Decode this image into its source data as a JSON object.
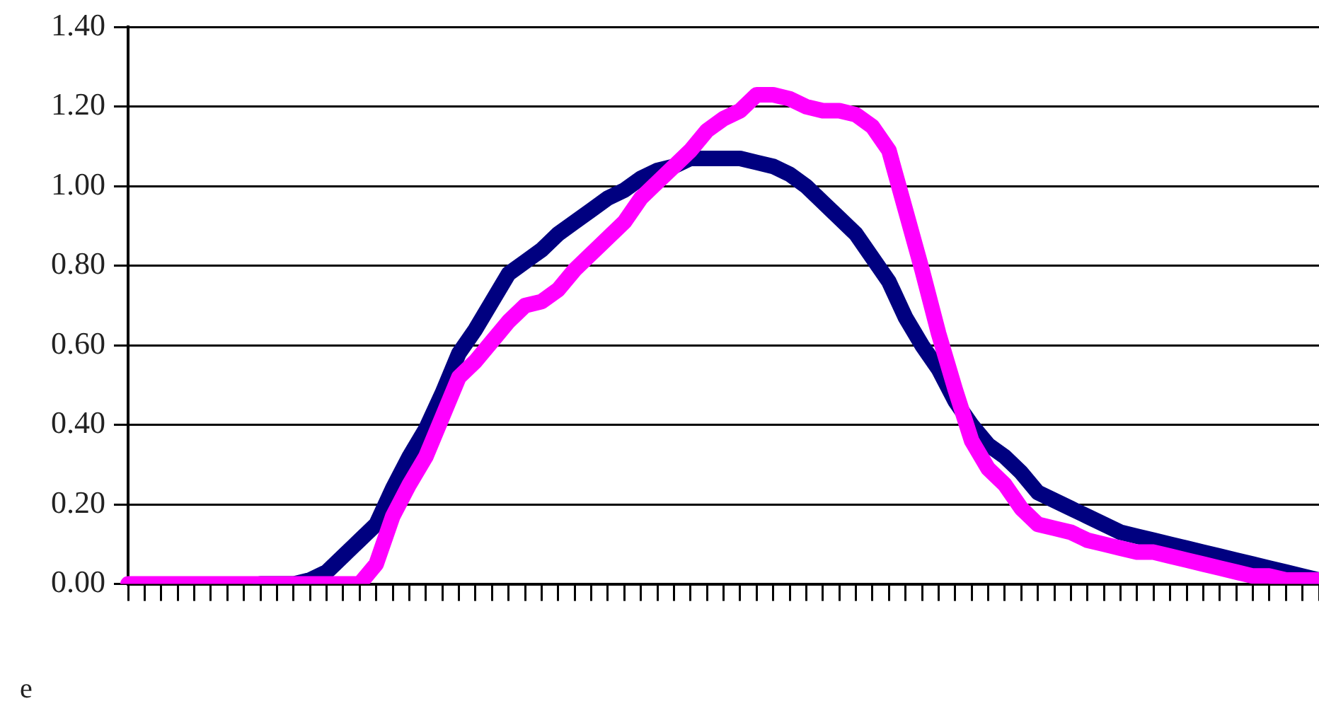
{
  "chart_data": {
    "type": "line",
    "categories": [
      null,
      null,
      null,
      null,
      null,
      null,
      null,
      null,
      null,
      null,
      null,
      null,
      null,
      null,
      null,
      null,
      null,
      null,
      null,
      null,
      null,
      null,
      null,
      null,
      null,
      null,
      null,
      null,
      null,
      null,
      null,
      null,
      null,
      null,
      null,
      null,
      null,
      null,
      null,
      null,
      null,
      null,
      null,
      null,
      null,
      null,
      null,
      null,
      null,
      null,
      null,
      null,
      null,
      null,
      null,
      null,
      null,
      null,
      null,
      null,
      null,
      null,
      null,
      null,
      null,
      null,
      null,
      null,
      null,
      null,
      null,
      null,
      null
    ],
    "series": [
      {
        "color": "#000080",
        "values": [
          null,
          null,
          null,
          null,
          null,
          null,
          null,
          null,
          0,
          0,
          0,
          0.01,
          0.03,
          0.07,
          0.11,
          0.15,
          0.24,
          0.32,
          0.39,
          0.48,
          0.58,
          0.64,
          0.71,
          0.78,
          0.81,
          0.84,
          0.88,
          0.91,
          0.94,
          0.97,
          0.99,
          1.02,
          1.04,
          1.05,
          1.07,
          1.07,
          1.07,
          1.07,
          1.06,
          1.05,
          1.03,
          1.0,
          0.96,
          0.92,
          0.88,
          0.82,
          0.76,
          0.67,
          0.6,
          0.54,
          0.46,
          0.4,
          0.35,
          0.32,
          0.28,
          0.23,
          0.21,
          0.19,
          0.17,
          0.15,
          0.13,
          0.12,
          0.11,
          0.1,
          0.09,
          0.08,
          0.07,
          0.06,
          0.05,
          0.04,
          0.03,
          0.02,
          0.01
        ]
      },
      {
        "color": "#ff00ff",
        "values": [
          0,
          0,
          0,
          0,
          0,
          0,
          0,
          0,
          0,
          0,
          0,
          0,
          0,
          0,
          0,
          0.05,
          0.17,
          0.25,
          0.32,
          0.42,
          0.52,
          0.56,
          0.61,
          0.66,
          0.7,
          0.71,
          0.74,
          0.79,
          0.83,
          0.87,
          0.91,
          0.97,
          1.01,
          1.05,
          1.09,
          1.14,
          1.17,
          1.19,
          1.23,
          1.23,
          1.22,
          1.2,
          1.19,
          1.19,
          1.18,
          1.15,
          1.09,
          0.94,
          0.79,
          0.63,
          0.49,
          0.36,
          0.29,
          0.25,
          0.19,
          0.15,
          0.14,
          0.13,
          0.11,
          0.1,
          0.09,
          0.08,
          0.08,
          0.07,
          0.06,
          0.05,
          0.04,
          0.03,
          0.02,
          0.02,
          0.01,
          0.01,
          0.01
        ]
      }
    ],
    "ylim": [
      0,
      1.4
    ],
    "yticks": [
      {
        "value": 0,
        "label": "0.00"
      },
      {
        "value": 0.2,
        "label": "0.20"
      },
      {
        "value": 0.4,
        "label": "0.40"
      },
      {
        "value": 0.6,
        "label": "0.60"
      },
      {
        "value": 0.8,
        "label": "0.80"
      },
      {
        "value": 1.0,
        "label": "1.00"
      },
      {
        "value": 1.2,
        "label": "1.20"
      },
      {
        "value": 1.4,
        "label": "1.40"
      }
    ],
    "grid": "y",
    "legend": false,
    "marker": "none",
    "line_style": "solid",
    "tick_labels": "y",
    "annotations": [
      "e"
    ]
  }
}
